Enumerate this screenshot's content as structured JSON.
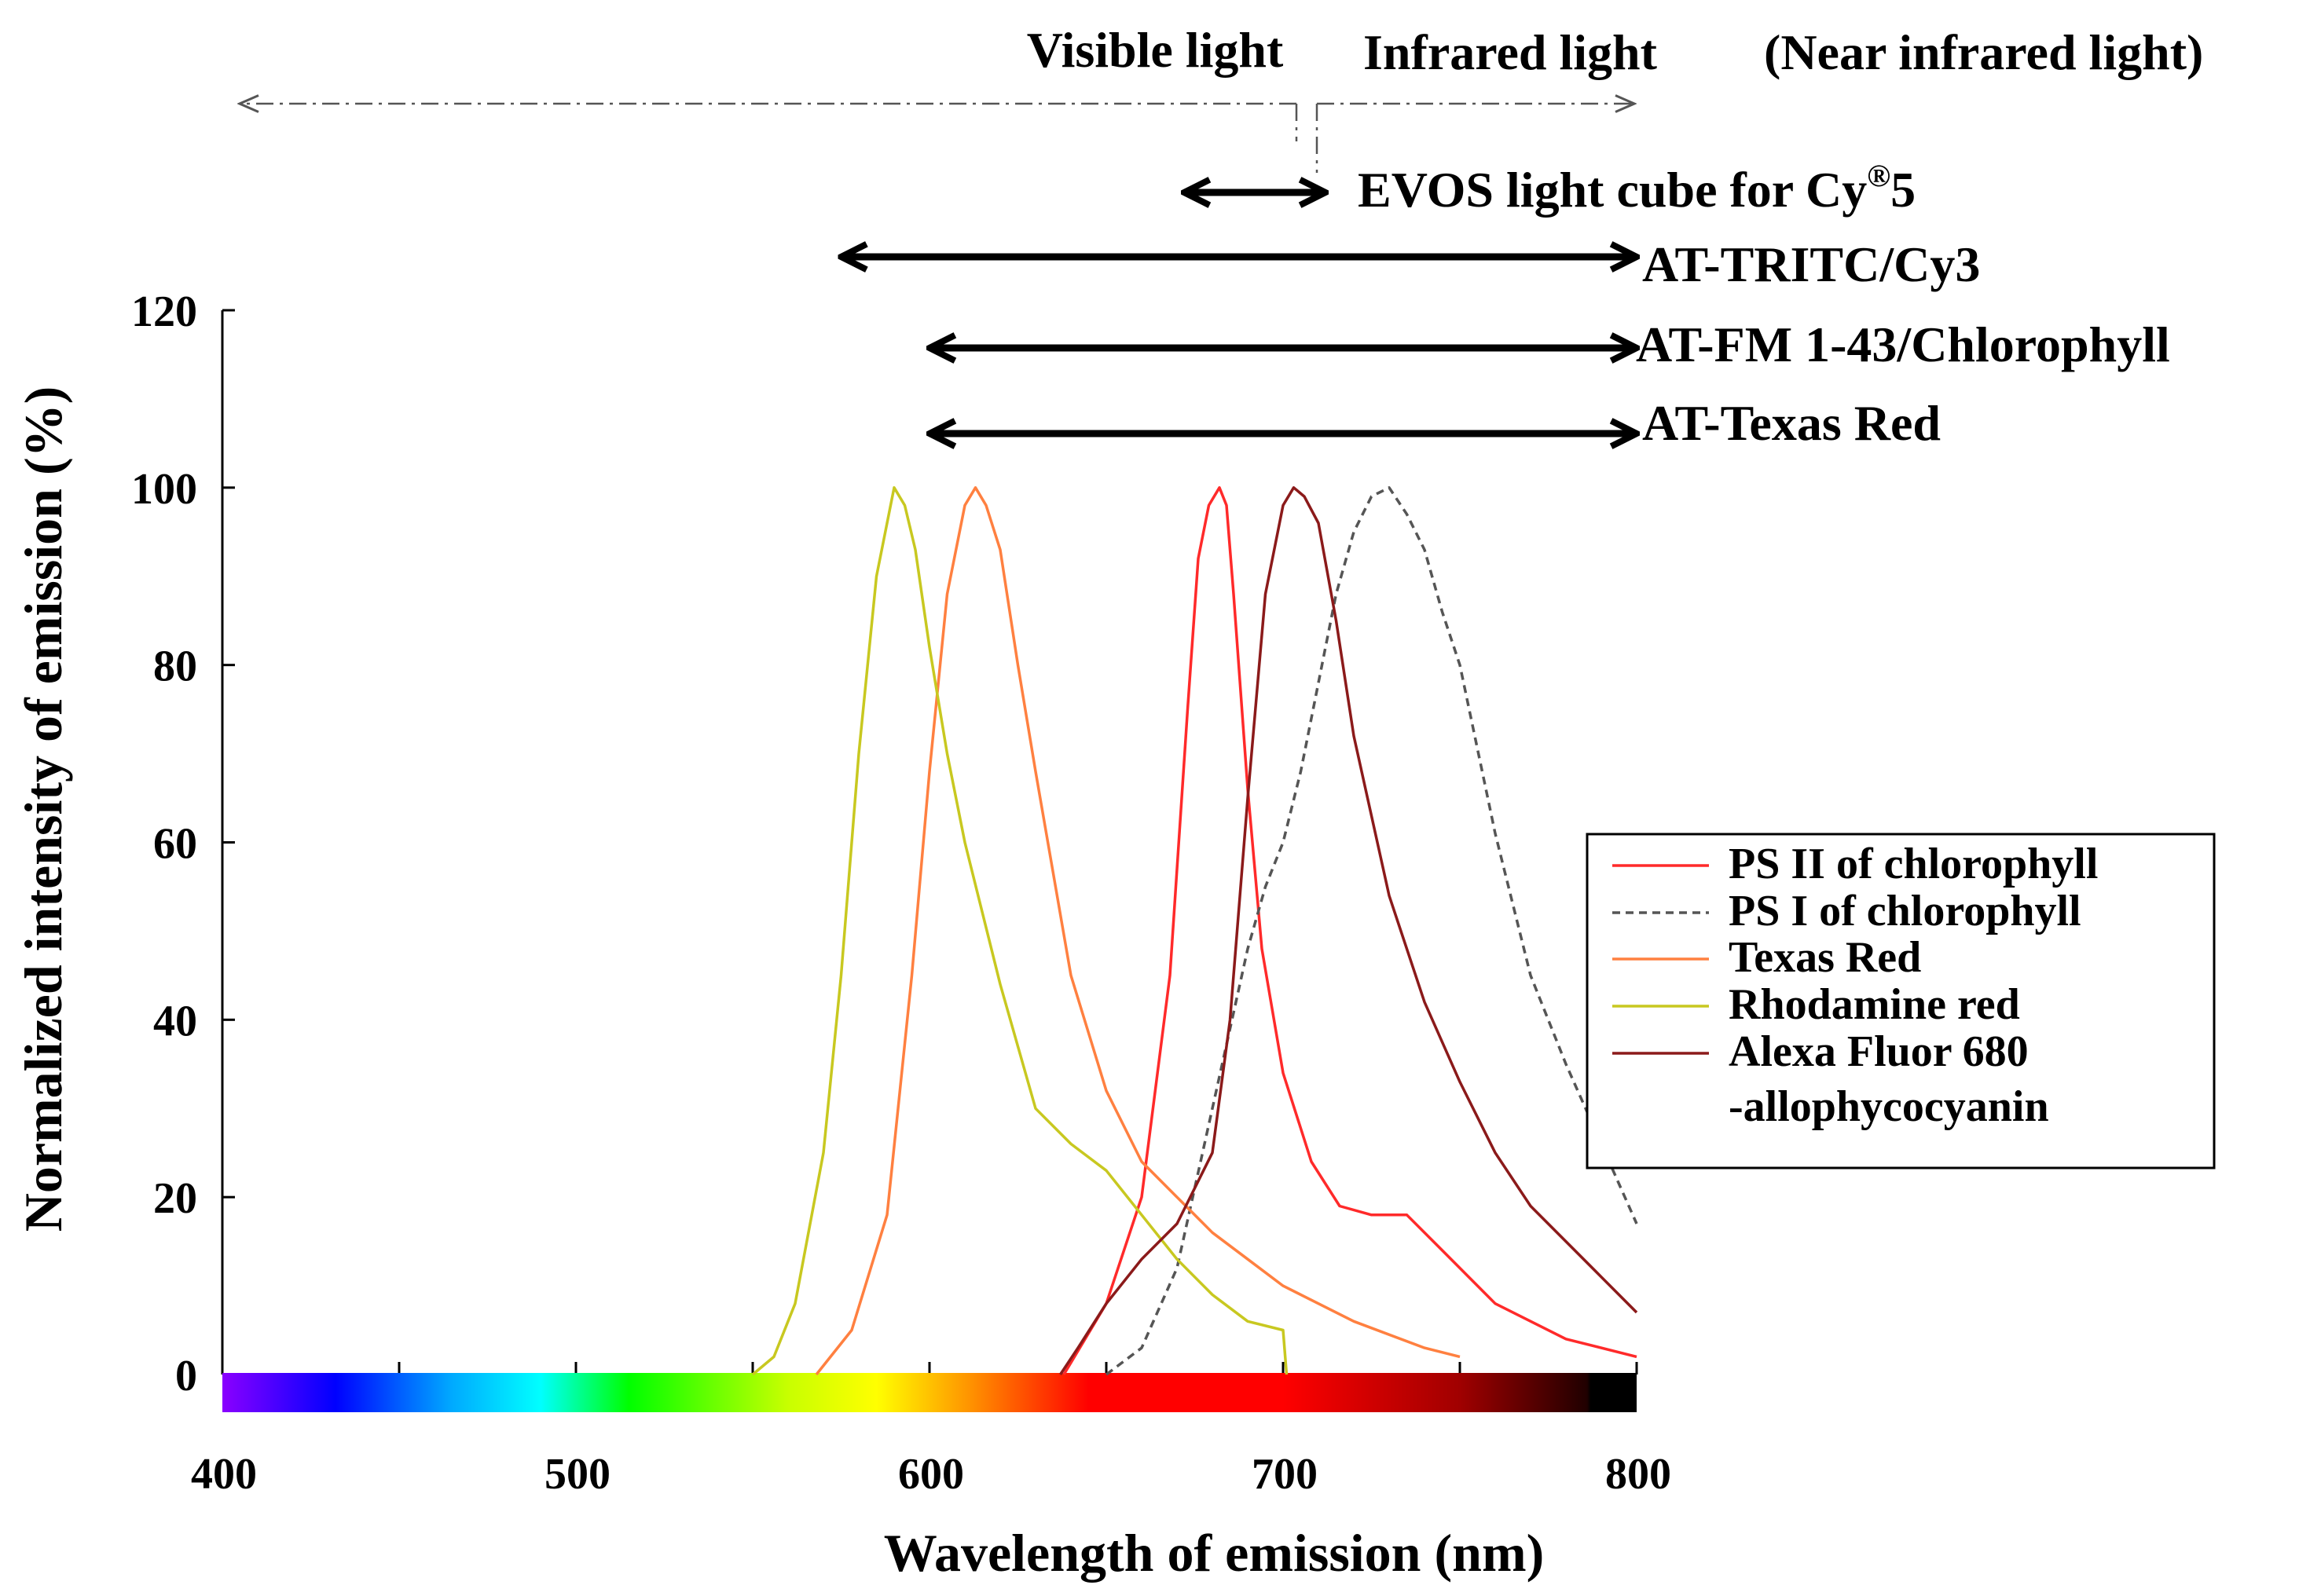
{
  "chart_data": {
    "type": "line",
    "title": "",
    "xlabel": "Wavelength of emission (nm)",
    "ylabel": "Normalized intensity of emission (%)",
    "xlim": [
      400,
      800
    ],
    "ylim": [
      0,
      120
    ],
    "xticks": [
      400,
      500,
      600,
      700,
      800
    ],
    "yticks": [
      0,
      20,
      40,
      60,
      80,
      100,
      120
    ],
    "grid": false,
    "legend_position": "right",
    "series": [
      {
        "name": "PS II of chlorophyll",
        "color": "#ff2a2a",
        "dash": "solid",
        "x": [
          638,
          650,
          660,
          668,
          673,
          676,
          679,
          682,
          684,
          686,
          690,
          694,
          700,
          708,
          716,
          725,
          735,
          745,
          760,
          780,
          800
        ],
        "y": [
          0,
          8,
          20,
          45,
          75,
          92,
          98,
          100,
          98,
          88,
          66,
          48,
          34,
          24,
          19,
          18,
          18,
          14,
          8,
          4,
          2
        ]
      },
      {
        "name": "PS I of chlorophyll",
        "color": "#555555",
        "dash": "dashed",
        "x": [
          650,
          660,
          670,
          680,
          690,
          695,
          700,
          705,
          710,
          715,
          720,
          725,
          730,
          735,
          740,
          745,
          750,
          760,
          770,
          780,
          790,
          800
        ],
        "y": [
          0,
          3,
          12,
          30,
          48,
          55,
          60,
          68,
          78,
          88,
          95,
          99,
          100,
          97,
          93,
          86,
          80,
          61,
          45,
          35,
          26,
          17
        ]
      },
      {
        "name": "Texas Red",
        "color": "#ff8040",
        "dash": "solid",
        "x": [
          568,
          578,
          588,
          595,
          600,
          605,
          610,
          613,
          616,
          620,
          625,
          630,
          640,
          650,
          660,
          670,
          680,
          690,
          700,
          720,
          740,
          750
        ],
        "y": [
          0,
          5,
          18,
          45,
          68,
          88,
          98,
          100,
          98,
          93,
          80,
          68,
          45,
          32,
          24,
          20,
          16,
          13,
          10,
          6,
          3,
          2
        ]
      },
      {
        "name": "Rhodamine red",
        "color": "#c8c820",
        "dash": "solid",
        "x": [
          550,
          556,
          562,
          570,
          575,
          580,
          585,
          590,
          593,
          596,
          600,
          605,
          610,
          620,
          630,
          640,
          650,
          660,
          670,
          680,
          690,
          700,
          701
        ],
        "y": [
          0,
          2,
          8,
          25,
          45,
          70,
          90,
          100,
          98,
          93,
          82,
          70,
          60,
          44,
          30,
          26,
          23,
          18,
          13,
          9,
          6,
          5,
          0
        ]
      },
      {
        "name": "Alexa Fluor 680 -allophycocyanin",
        "color": "#8b1a1a",
        "dash": "solid",
        "x": [
          637,
          642,
          650,
          660,
          670,
          680,
          685,
          690,
          695,
          700,
          703,
          706,
          710,
          715,
          720,
          730,
          740,
          750,
          760,
          770,
          780,
          790,
          800
        ],
        "y": [
          0,
          3,
          8,
          13,
          17,
          25,
          40,
          65,
          88,
          98,
          100,
          99,
          96,
          85,
          72,
          54,
          42,
          33,
          25,
          19,
          15,
          11,
          7
        ]
      }
    ],
    "region_arrows": {
      "visible_label": "Visible light",
      "infrared_label": "Infrared light",
      "near_infrared_label": "(Near infrared light)",
      "visible_range": [
        400,
        700
      ],
      "infrared_range": [
        700,
        800
      ]
    },
    "filter_ranges": [
      {
        "label": "EVOS light cube for Cy",
        "label_sup": "®",
        "label_tail": "5",
        "range": [
          672,
          712
        ]
      },
      {
        "label": "AT-TRITC/Cy3",
        "range": [
          575,
          800
        ]
      },
      {
        "label": "AT-FM 1-43/Chlorophyll",
        "range": [
          600,
          800
        ]
      },
      {
        "label": "AT-Texas Red",
        "range": [
          600,
          800
        ]
      }
    ],
    "spectrum_bar": {
      "stops": [
        [
          400,
          "#8a00ff"
        ],
        [
          432,
          "#0000ff"
        ],
        [
          465,
          "#00aaff"
        ],
        [
          490,
          "#00ffff"
        ],
        [
          515,
          "#00ff00"
        ],
        [
          560,
          "#c8ff00"
        ],
        [
          585,
          "#ffff00"
        ],
        [
          610,
          "#ff9900"
        ],
        [
          645,
          "#ff0000"
        ],
        [
          700,
          "#ff0000"
        ],
        [
          750,
          "#a00000"
        ],
        [
          786,
          "#200000"
        ],
        [
          787,
          "#000000"
        ],
        [
          800,
          "#000000"
        ]
      ]
    }
  }
}
